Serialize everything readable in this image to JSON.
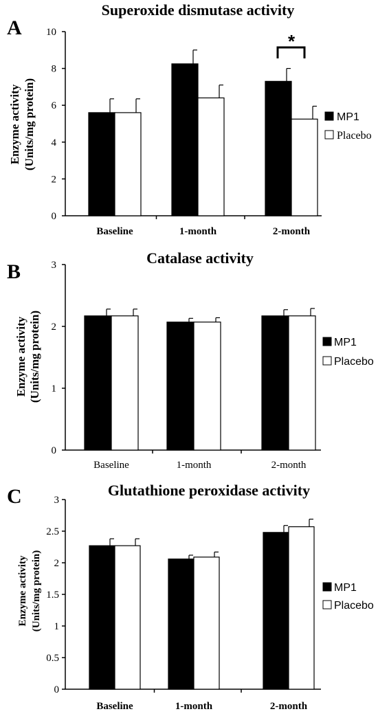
{
  "legend": {
    "series1": "MP1",
    "series2": "Placebo"
  },
  "chart_data": [
    {
      "type": "bar",
      "panel": "A",
      "title": "Superoxide dismutase activity",
      "ylabel_line1": "Enzyme activity",
      "ylabel_line2": "(Units/mg protein)",
      "categories": [
        "Baseline",
        "1-month",
        "2-month"
      ],
      "ylim": [
        0,
        10
      ],
      "yticks": [
        "0",
        "2",
        "4",
        "6",
        "8",
        "10"
      ],
      "series": [
        {
          "name": "MP1",
          "values": [
            5.6,
            8.25,
            7.3
          ],
          "errors": [
            0.75,
            0.75,
            0.7
          ],
          "color": "#000000"
        },
        {
          "name": "Placebo",
          "values": [
            5.6,
            6.4,
            5.25
          ],
          "errors": [
            0.75,
            0.7,
            0.7
          ],
          "color": "#ffffff"
        }
      ],
      "annotation": "*"
    },
    {
      "type": "bar",
      "panel": "B",
      "title": "Catalase activity",
      "ylabel_line1": "Enzyme activity",
      "ylabel_line2": "(Units/mg protein)",
      "categories": [
        "Baseline",
        "1-month",
        "2-month"
      ],
      "ylim": [
        0,
        3
      ],
      "yticks": [
        "0",
        "1",
        "2",
        "3"
      ],
      "series": [
        {
          "name": "MP1",
          "values": [
            2.17,
            2.07,
            2.17
          ],
          "errors": [
            0.11,
            0.06,
            0.1
          ],
          "color": "#000000"
        },
        {
          "name": "Placebo",
          "values": [
            2.17,
            2.07,
            2.17
          ],
          "errors": [
            0.11,
            0.07,
            0.12
          ],
          "color": "#ffffff"
        }
      ]
    },
    {
      "type": "bar",
      "panel": "C",
      "title": "Glutathione peroxidase activity",
      "ylabel_line1": "Enzyme activity",
      "ylabel_line2": "(Units/mg protein)",
      "categories": [
        "Baseline",
        "1-month",
        "2-month"
      ],
      "ylim": [
        0,
        3
      ],
      "yticks": [
        "0",
        "0.5",
        "1",
        "1.5",
        "2",
        "2.5",
        "3"
      ],
      "series": [
        {
          "name": "MP1",
          "values": [
            2.27,
            2.06,
            2.48
          ],
          "errors": [
            0.11,
            0.06,
            0.11
          ],
          "color": "#000000"
        },
        {
          "name": "Placebo",
          "values": [
            2.27,
            2.09,
            2.57
          ],
          "errors": [
            0.11,
            0.08,
            0.12
          ],
          "color": "#ffffff"
        }
      ]
    }
  ]
}
